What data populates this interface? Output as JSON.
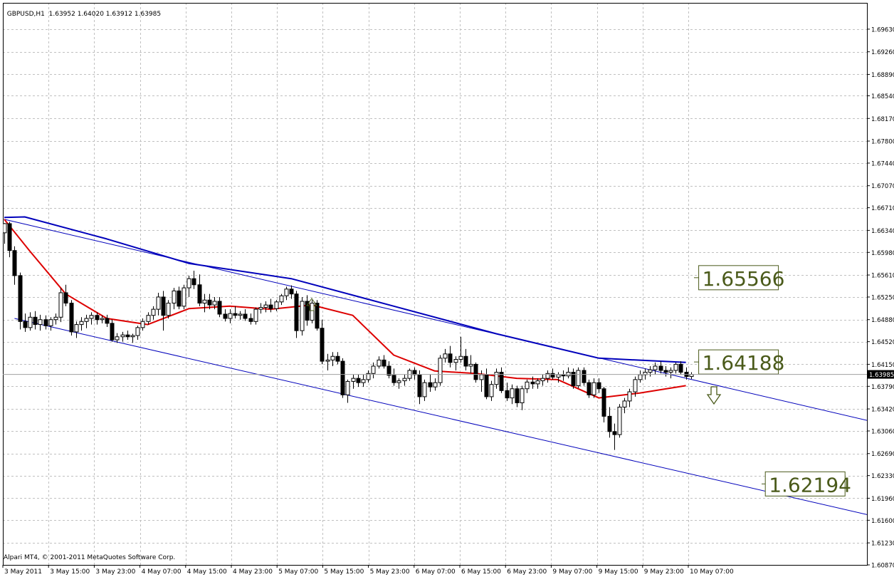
{
  "header": {
    "symbol_tf": "GBPUSD,H1",
    "ohlc": "1.63952 1.64020 1.63912 1.63985"
  },
  "footer": {
    "copyright": "Alpari MT4, © 2001-2011 MetaQuotes Software Corp."
  },
  "chart_data": {
    "type": "candlestick",
    "symbol": "GBPUSD",
    "timeframe": "H1",
    "ylim": [
      1.6087,
      1.7006
    ],
    "y_ticks": [
      "1.69630",
      "1.69260",
      "1.68890",
      "1.68540",
      "1.68170",
      "1.67800",
      "1.67440",
      "1.67070",
      "1.66710",
      "1.66340",
      "1.65980",
      "1.65610",
      "1.65250",
      "1.64880",
      "1.64520",
      "1.64150",
      "1.63790",
      "1.63420",
      "1.63060",
      "1.62690",
      "1.62330",
      "1.61960",
      "1.61600",
      "1.61230",
      "1.60870"
    ],
    "x_ticks": [
      "3 May 2011",
      "3 May 15:00",
      "3 May 23:00",
      "4 May 07:00",
      "4 May 15:00",
      "4 May 23:00",
      "5 May 07:00",
      "5 May 15:00",
      "5 May 23:00",
      "6 May 07:00",
      "6 May 15:00",
      "6 May 23:00",
      "9 May 07:00",
      "9 May 15:00",
      "9 May 23:00",
      "10 May 07:00"
    ],
    "current_price": "1.63985",
    "candles": [
      [
        1.663,
        1.6646,
        1.6612,
        1.6645
      ],
      [
        1.6645,
        1.6648,
        1.659,
        1.6601
      ],
      [
        1.6601,
        1.6608,
        1.6545,
        1.656
      ],
      [
        1.656,
        1.6565,
        1.6472,
        1.6485
      ],
      [
        1.6485,
        1.6498,
        1.6468,
        1.6475
      ],
      [
        1.6475,
        1.65,
        1.647,
        1.6492
      ],
      [
        1.6492,
        1.6502,
        1.6472,
        1.648
      ],
      [
        1.648,
        1.6496,
        1.647,
        1.6488
      ],
      [
        1.6488,
        1.6495,
        1.6472,
        1.6478
      ],
      [
        1.6478,
        1.6492,
        1.647,
        1.6488
      ],
      [
        1.6488,
        1.6498,
        1.648,
        1.6492
      ],
      [
        1.6492,
        1.654,
        1.6484,
        1.6532
      ],
      [
        1.6532,
        1.6545,
        1.651,
        1.6515
      ],
      [
        1.6515,
        1.652,
        1.6462,
        1.6468
      ],
      [
        1.6468,
        1.6485,
        1.6458,
        1.648
      ],
      [
        1.648,
        1.6492,
        1.647,
        1.6485
      ],
      [
        1.6485,
        1.6496,
        1.6474,
        1.649
      ],
      [
        1.649,
        1.65,
        1.648,
        1.6495
      ],
      [
        1.6495,
        1.65,
        1.648,
        1.6488
      ],
      [
        1.6488,
        1.6495,
        1.6482,
        1.649
      ],
      [
        1.649,
        1.6496,
        1.6476,
        1.6482
      ],
      [
        1.6482,
        1.6488,
        1.6452,
        1.6455
      ],
      [
        1.6455,
        1.6466,
        1.645,
        1.646
      ],
      [
        1.646,
        1.6468,
        1.6452,
        1.6463
      ],
      [
        1.6463,
        1.647,
        1.6455,
        1.646
      ],
      [
        1.646,
        1.6465,
        1.645,
        1.6462
      ],
      [
        1.6462,
        1.6478,
        1.6455,
        1.6475
      ],
      [
        1.6475,
        1.649,
        1.647,
        1.6485
      ],
      [
        1.6485,
        1.65,
        1.648,
        1.6495
      ],
      [
        1.6495,
        1.651,
        1.6488,
        1.6505
      ],
      [
        1.6505,
        1.6532,
        1.6495,
        1.6525
      ],
      [
        1.6525,
        1.6535,
        1.647,
        1.6495
      ],
      [
        1.6495,
        1.652,
        1.649,
        1.6515
      ],
      [
        1.6515,
        1.654,
        1.6505,
        1.6535
      ],
      [
        1.6535,
        1.6542,
        1.6505,
        1.651
      ],
      [
        1.651,
        1.6545,
        1.6505,
        1.654
      ],
      [
        1.654,
        1.656,
        1.6525,
        1.6555
      ],
      [
        1.6555,
        1.6568,
        1.6538,
        1.6545
      ],
      [
        1.6545,
        1.6562,
        1.651,
        1.6515
      ],
      [
        1.6515,
        1.653,
        1.65,
        1.652
      ],
      [
        1.652,
        1.653,
        1.6505,
        1.6512
      ],
      [
        1.6512,
        1.6525,
        1.6505,
        1.6518
      ],
      [
        1.6518,
        1.6525,
        1.6492,
        1.6497
      ],
      [
        1.6497,
        1.6505,
        1.6485,
        1.649
      ],
      [
        1.649,
        1.6505,
        1.6482,
        1.6498
      ],
      [
        1.6498,
        1.651,
        1.649,
        1.6495
      ],
      [
        1.6495,
        1.6502,
        1.6488,
        1.6497
      ],
      [
        1.6497,
        1.6505,
        1.6486,
        1.649
      ],
      [
        1.649,
        1.6498,
        1.648,
        1.6485
      ],
      [
        1.6485,
        1.6508,
        1.648,
        1.6505
      ],
      [
        1.6505,
        1.6515,
        1.6498,
        1.6508
      ],
      [
        1.6508,
        1.6518,
        1.65,
        1.6512
      ],
      [
        1.6512,
        1.6522,
        1.65,
        1.6506
      ],
      [
        1.6506,
        1.652,
        1.6502,
        1.6517
      ],
      [
        1.6517,
        1.653,
        1.6512,
        1.6527
      ],
      [
        1.6527,
        1.6542,
        1.652,
        1.6538
      ],
      [
        1.6538,
        1.6544,
        1.6522,
        1.653
      ],
      [
        1.653,
        1.6535,
        1.6458,
        1.647
      ],
      [
        1.647,
        1.6525,
        1.6462,
        1.6518
      ],
      [
        1.6518,
        1.6528,
        1.6478,
        1.6487
      ],
      [
        1.6487,
        1.652,
        1.6482,
        1.6515
      ],
      [
        1.6515,
        1.652,
        1.647,
        1.6474
      ],
      [
        1.6474,
        1.6488,
        1.6415,
        1.642
      ],
      [
        1.642,
        1.6432,
        1.6405,
        1.6422
      ],
      [
        1.6422,
        1.6435,
        1.6412,
        1.6428
      ],
      [
        1.6428,
        1.6435,
        1.6415,
        1.642
      ],
      [
        1.642,
        1.6425,
        1.636,
        1.6365
      ],
      [
        1.6365,
        1.639,
        1.6352,
        1.6387
      ],
      [
        1.6387,
        1.6398,
        1.6375,
        1.6392
      ],
      [
        1.6392,
        1.6398,
        1.6378,
        1.6385
      ],
      [
        1.6385,
        1.6398,
        1.6378,
        1.639
      ],
      [
        1.639,
        1.6405,
        1.6385,
        1.64
      ],
      [
        1.64,
        1.6418,
        1.6392,
        1.6412
      ],
      [
        1.6412,
        1.6428,
        1.6408,
        1.6422
      ],
      [
        1.6422,
        1.643,
        1.6408,
        1.6412
      ],
      [
        1.6412,
        1.642,
        1.6392,
        1.6397
      ],
      [
        1.6397,
        1.6408,
        1.638,
        1.6385
      ],
      [
        1.6385,
        1.6392,
        1.6375,
        1.6388
      ],
      [
        1.6388,
        1.6398,
        1.638,
        1.6392
      ],
      [
        1.6392,
        1.6408,
        1.6388,
        1.6405
      ],
      [
        1.6405,
        1.641,
        1.639,
        1.6398
      ],
      [
        1.6398,
        1.6405,
        1.635,
        1.6362
      ],
      [
        1.6362,
        1.639,
        1.6355,
        1.6385
      ],
      [
        1.6385,
        1.6398,
        1.637,
        1.6378
      ],
      [
        1.6378,
        1.6392,
        1.6372,
        1.6385
      ],
      [
        1.6385,
        1.643,
        1.638,
        1.6425
      ],
      [
        1.6425,
        1.644,
        1.6418,
        1.6432
      ],
      [
        1.6432,
        1.6445,
        1.641,
        1.6418
      ],
      [
        1.6418,
        1.6428,
        1.6405,
        1.6423
      ],
      [
        1.6423,
        1.646,
        1.6418,
        1.6428
      ],
      [
        1.6428,
        1.644,
        1.6405,
        1.6412
      ],
      [
        1.6412,
        1.643,
        1.64,
        1.6415
      ],
      [
        1.6415,
        1.6418,
        1.6385,
        1.639
      ],
      [
        1.639,
        1.6405,
        1.637,
        1.6398
      ],
      [
        1.6398,
        1.6408,
        1.6358,
        1.6362
      ],
      [
        1.6362,
        1.6388,
        1.6355,
        1.6382
      ],
      [
        1.6382,
        1.6408,
        1.6375,
        1.6402
      ],
      [
        1.6402,
        1.641,
        1.6368,
        1.6372
      ],
      [
        1.6372,
        1.6385,
        1.6355,
        1.636
      ],
      [
        1.636,
        1.6382,
        1.635,
        1.6375
      ],
      [
        1.6375,
        1.638,
        1.6345,
        1.6352
      ],
      [
        1.6352,
        1.638,
        1.634,
        1.6375
      ],
      [
        1.6375,
        1.639,
        1.6368,
        1.6386
      ],
      [
        1.6386,
        1.6395,
        1.6375,
        1.6383
      ],
      [
        1.6383,
        1.6392,
        1.6375,
        1.6388
      ],
      [
        1.6388,
        1.6398,
        1.638,
        1.6392
      ],
      [
        1.6392,
        1.6405,
        1.6385,
        1.64
      ],
      [
        1.64,
        1.6408,
        1.639,
        1.6394
      ],
      [
        1.6394,
        1.6402,
        1.6385,
        1.6398
      ],
      [
        1.6398,
        1.6405,
        1.6388,
        1.6396
      ],
      [
        1.6396,
        1.641,
        1.6392,
        1.6402
      ],
      [
        1.6402,
        1.6408,
        1.6375,
        1.638
      ],
      [
        1.638,
        1.641,
        1.6376,
        1.6405
      ],
      [
        1.6405,
        1.641,
        1.638,
        1.6385
      ],
      [
        1.6385,
        1.639,
        1.636,
        1.6365
      ],
      [
        1.6365,
        1.6392,
        1.636,
        1.6385
      ],
      [
        1.6385,
        1.6392,
        1.6368,
        1.6375
      ],
      [
        1.6375,
        1.6378,
        1.632,
        1.633
      ],
      [
        1.633,
        1.6345,
        1.6295,
        1.6305
      ],
      [
        1.6305,
        1.6318,
        1.6275,
        1.63
      ],
      [
        1.63,
        1.635,
        1.6295,
        1.6345
      ],
      [
        1.6345,
        1.636,
        1.6335,
        1.6355
      ],
      [
        1.6355,
        1.6375,
        1.6345,
        1.637
      ],
      [
        1.637,
        1.6395,
        1.6362,
        1.639
      ],
      [
        1.639,
        1.6405,
        1.6385,
        1.6398
      ],
      [
        1.6398,
        1.6408,
        1.639,
        1.6402
      ],
      [
        1.6402,
        1.6412,
        1.6395,
        1.6406
      ],
      [
        1.6406,
        1.6418,
        1.6398,
        1.6412
      ],
      [
        1.6412,
        1.642,
        1.64,
        1.6405
      ],
      [
        1.6405,
        1.6412,
        1.6395,
        1.6402
      ],
      [
        1.6402,
        1.641,
        1.6392,
        1.6405
      ],
      [
        1.6405,
        1.6418,
        1.64,
        1.6415
      ],
      [
        1.6415,
        1.642,
        1.6398,
        1.6402
      ],
      [
        1.6402,
        1.641,
        1.639,
        1.6395
      ],
      [
        1.6395,
        1.6402,
        1.6391,
        1.63985
      ]
    ],
    "series": [
      {
        "name": "",
        "color": "#dd0000",
        "x": [
          0,
          5,
          12,
          20,
          28,
          36,
          44,
          52,
          60,
          68,
          76,
          84,
          92,
          100,
          108,
          116,
          124,
          133
        ],
        "y": [
          1.6652,
          1.66,
          1.653,
          1.649,
          1.648,
          1.6506,
          1.651,
          1.6505,
          1.6512,
          1.6495,
          1.643,
          1.6404,
          1.64,
          1.6392,
          1.639,
          1.636,
          1.6368,
          1.638
        ]
      },
      {
        "name": "",
        "color": "#0000bb",
        "x": [
          0,
          4,
          20,
          36,
          56,
          76,
          96,
          116,
          133
        ],
        "y": [
          1.6655,
          1.6656,
          1.662,
          1.658,
          1.6555,
          1.651,
          1.6465,
          1.6425,
          1.6418
        ]
      }
    ],
    "channel_lines": [
      {
        "color": "#0000bb",
        "x": [
          0,
          169
        ],
        "y": [
          1.6652,
          1.6322
        ]
      },
      {
        "color": "#0000bb",
        "x": [
          2,
          169
        ],
        "y": [
          1.649,
          1.6168
        ]
      }
    ],
    "price_labels": [
      "1.65566",
      "1.64188",
      "1.62194"
    ],
    "colors": {
      "axis": "#000000",
      "grid": "#c0c0c0",
      "candle_bull": "#ffffff",
      "candle_bear": "#000000",
      "label_border": "#4a5a1a",
      "label_text": "#4a5a1a",
      "arrow": "#4a5a1a"
    }
  }
}
